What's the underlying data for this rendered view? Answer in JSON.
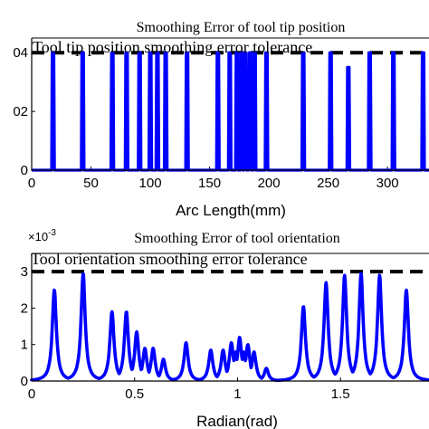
{
  "chart_data": [
    {
      "type": "line",
      "title": "Smoothing Error of tool tip position",
      "legend_text": "Tool tip position  smoothing error tolerance",
      "xlabel": "Arc Length(mm)",
      "xlim": [
        0,
        335
      ],
      "ylim": [
        0,
        0.0045
      ],
      "xticks": [
        0,
        50,
        100,
        150,
        200,
        250,
        300
      ],
      "yticks": [
        {
          "value": 0,
          "label": "0"
        },
        {
          "value": 0.002,
          "label": "02"
        },
        {
          "value": 0.004,
          "label": "04"
        }
      ],
      "tolerance": 0.004,
      "series": [
        {
          "kind": "spikes",
          "color": "#0000ff",
          "x": [
            18,
            43,
            68,
            80,
            91,
            100,
            106,
            113,
            131,
            157,
            167,
            173,
            177,
            180,
            184,
            188,
            198,
            229,
            252,
            267,
            285,
            305,
            330
          ],
          "y": [
            0.004,
            0.004,
            0.004,
            0.004,
            0.004,
            0.004,
            0.004,
            0.004,
            0.004,
            0.004,
            0.004,
            0.004,
            0.004,
            0.004,
            0.004,
            0.004,
            0.004,
            0.004,
            0.004,
            0.0035,
            0.004,
            0.004,
            0.004
          ]
        }
      ],
      "colors": {
        "line": "#0000ff",
        "tolerance": "#000000"
      }
    },
    {
      "type": "line",
      "title": "Smoothing Error of tool orientation",
      "legend_text": "Tool orientation  smoothing error tolerance",
      "xlabel": "Radian(rad)",
      "exponent_label": "×10",
      "exponent_power": "-3",
      "xlim": [
        0,
        1.93
      ],
      "ylim": [
        0,
        0.0035
      ],
      "xticks": [
        {
          "value": 0,
          "label": "0"
        },
        {
          "value": 0.5,
          "label": "0.5"
        },
        {
          "value": 1,
          "label": "1"
        },
        {
          "value": 1.5,
          "label": "1.5"
        }
      ],
      "yticks": [
        {
          "value": 0,
          "label": "0"
        },
        {
          "value": 0.001,
          "label": "1"
        },
        {
          "value": 0.002,
          "label": "2"
        },
        {
          "value": 0.003,
          "label": "3"
        }
      ],
      "tolerance": 0.003,
      "series": [
        {
          "kind": "peaks",
          "color": "#0000ff",
          "x": [
            0.11,
            0.25,
            0.39,
            0.46,
            0.51,
            0.55,
            0.59,
            0.64,
            0.75,
            0.87,
            0.93,
            0.97,
            0.99,
            1.01,
            1.03,
            1.05,
            1.08,
            1.14,
            1.32,
            1.43,
            1.52,
            1.6,
            1.69,
            1.82
          ],
          "y": [
            0.0025,
            0.00295,
            0.0019,
            0.0019,
            0.00135,
            0.0009,
            0.0009,
            0.0006,
            0.00105,
            0.00085,
            0.00085,
            0.00105,
            0.0008,
            0.0012,
            0.0008,
            0.001,
            0.0008,
            0.00035,
            0.00205,
            0.0027,
            0.0029,
            0.00295,
            0.0029,
            0.0025
          ]
        }
      ],
      "colors": {
        "line": "#0000ff",
        "tolerance": "#000000"
      }
    }
  ]
}
